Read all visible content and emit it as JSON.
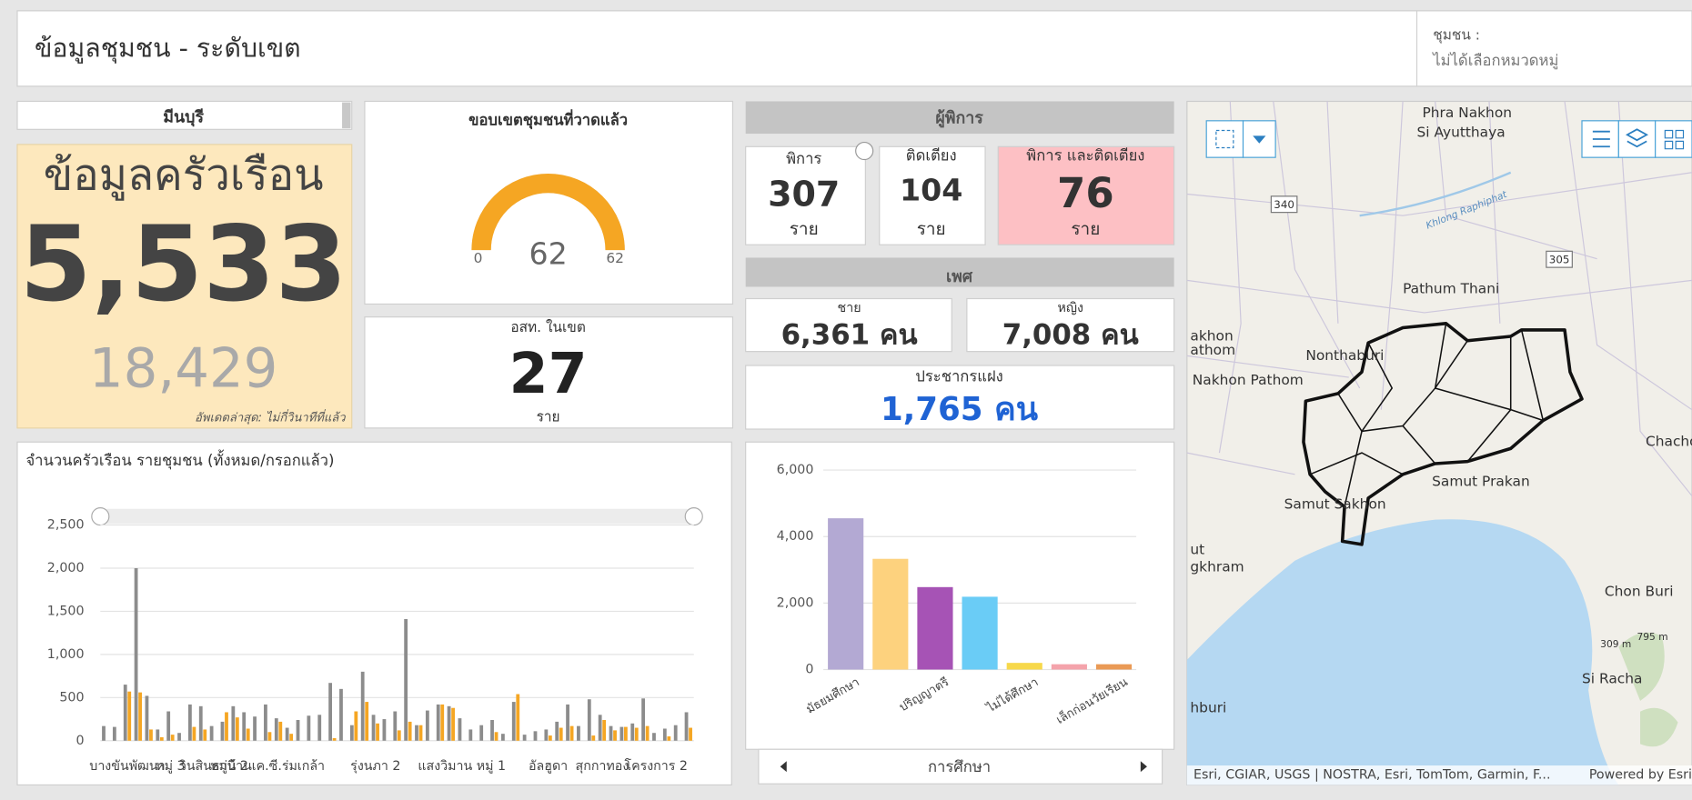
{
  "header": {
    "title": "ข้อมูลชุมชน - ระดับเขต",
    "filter_label": "ชุมชน :",
    "filter_value": "ไม่ได้เลือกหมวดหมู่"
  },
  "district": {
    "name": "มีนบุรี",
    "card_title": "ข้อมูลครัวเรือน",
    "households": "5,533",
    "population": "18,429",
    "updated": "อัพเดตล่าสุด: ไม่กี่วินาทีที่แล้ว"
  },
  "volunteers": {
    "title": "อสท. ในเขต",
    "value": "27",
    "unit": "ราย"
  },
  "disabled": {
    "title": "ผู้พิการ",
    "cards": [
      {
        "label": "พิการ",
        "value": "307",
        "unit": "ราย"
      },
      {
        "label": "ติดเตียง",
        "value": "104",
        "unit": "ราย"
      },
      {
        "label": "พิการ และติดเตียง",
        "value": "76",
        "unit": "ราย"
      }
    ]
  },
  "gender": {
    "title": "เพศ",
    "cards": [
      {
        "label": "ชาย",
        "value": "6,361 คน"
      },
      {
        "label": "หญิง",
        "value": "7,008 คน"
      }
    ]
  },
  "hidden_population": {
    "label": "ประชากรแฝง",
    "value": "1,765 คน"
  },
  "chart_data": [
    {
      "type": "gauge",
      "title": "ขอบเขตชุมชนที่วาดแล้ว",
      "value": 62,
      "min": 0,
      "max": 62,
      "color": "#f5a623"
    },
    {
      "type": "bar",
      "title": "จำนวนครัวเรือน รายชุมชน (ทั้งหมด/กรอกแล้ว)",
      "categories": [
        null,
        null,
        "บางขันพัฒนา",
        null,
        null,
        null,
        "หมู่ 3",
        null,
        null,
        null,
        "วินสินธานี 2",
        null,
        null,
        null,
        null,
        "หมู่บ้านเค.ซี.ร่มเกล้า",
        null,
        null,
        null,
        null,
        null,
        null,
        null,
        null,
        null,
        "รุ่งนภา 2",
        null,
        null,
        null,
        null,
        null,
        null,
        null,
        "แสงวิมาน หมู่ 1",
        null,
        null,
        null,
        null,
        null,
        null,
        null,
        "อัลฮูดา",
        null,
        null,
        null,
        null,
        "สุกกาทอง",
        null,
        null,
        null,
        null,
        "โครงการ 2",
        null,
        null,
        null
      ],
      "series": [
        {
          "color": "#8c8c8c",
          "values": [
            170,
            160,
            650,
            2000,
            520,
            130,
            340,
            90,
            420,
            400,
            170,
            220,
            400,
            330,
            280,
            420,
            260,
            150,
            240,
            290,
            300,
            670,
            600,
            180,
            800,
            300,
            250,
            340,
            1410,
            180,
            350,
            420,
            400,
            260,
            130,
            180,
            240,
            80,
            450,
            70,
            110,
            130,
            220,
            420,
            170,
            480,
            300,
            170,
            160,
            200,
            490,
            90,
            140,
            180,
            330
          ]
        },
        {
          "color": "#f5a623",
          "values": [
            0,
            0,
            570,
            560,
            130,
            40,
            70,
            0,
            160,
            130,
            0,
            330,
            270,
            140,
            0,
            100,
            220,
            80,
            0,
            0,
            0,
            30,
            0,
            340,
            450,
            200,
            0,
            120,
            220,
            180,
            0,
            420,
            380,
            0,
            0,
            0,
            100,
            0,
            540,
            0,
            0,
            60,
            150,
            170,
            0,
            60,
            240,
            120,
            160,
            150,
            170,
            0,
            50,
            0,
            150
          ]
        }
      ],
      "ylim": [
        0,
        2500
      ],
      "yticks": [
        0,
        500,
        {
          "value": 1000,
          "label": "1,000"
        },
        {
          "value": 1500,
          "label": "1,500"
        },
        {
          "value": 2000,
          "label": "2,000"
        },
        {
          "value": 2500,
          "label": "2,500"
        }
      ],
      "grid": true
    },
    {
      "type": "bar",
      "x_label": "การศึกษา",
      "categories": [
        "มัธยมศึกษา",
        null,
        "ปริญญาตรี",
        null,
        "ไม่ได้ศึกษา",
        null,
        "เล็กก่อนวัยเรียน"
      ],
      "values": [
        4550,
        3330,
        2480,
        2190,
        200,
        160,
        160
      ],
      "colors": [
        "#b3a9d3",
        "#fdd27e",
        "#a653b5",
        "#6accf6",
        "#f7d84a",
        "#f4a3ab",
        "#ea9a55"
      ],
      "ylim": [
        0,
        6000
      ],
      "yticks": [
        0,
        {
          "value": 2000,
          "label": "2,000"
        },
        {
          "value": 4000,
          "label": "4,000"
        },
        {
          "value": 6000,
          "label": "6,000"
        }
      ],
      "grid": true
    }
  ],
  "map": {
    "places": [
      "Phra Nakhon",
      "Si Ayutthaya",
      "Pathum Thani",
      "Nonthaburi",
      "Nakhon Pathom",
      "Samut Prakan",
      "Samut Sakhon",
      "Chacho",
      "Chon Buri",
      "Si Racha",
      "Khlong Raphiphat",
      "340",
      "305",
      "akhon",
      "athom",
      "ut",
      "gkhram",
      "hburi",
      "309 m",
      "795 m"
    ],
    "attribution": "Esri, CGIAR, USGS | NOSTRA, Esri, TomTom, Garmin, F...",
    "powered": "Powered by Esri"
  }
}
